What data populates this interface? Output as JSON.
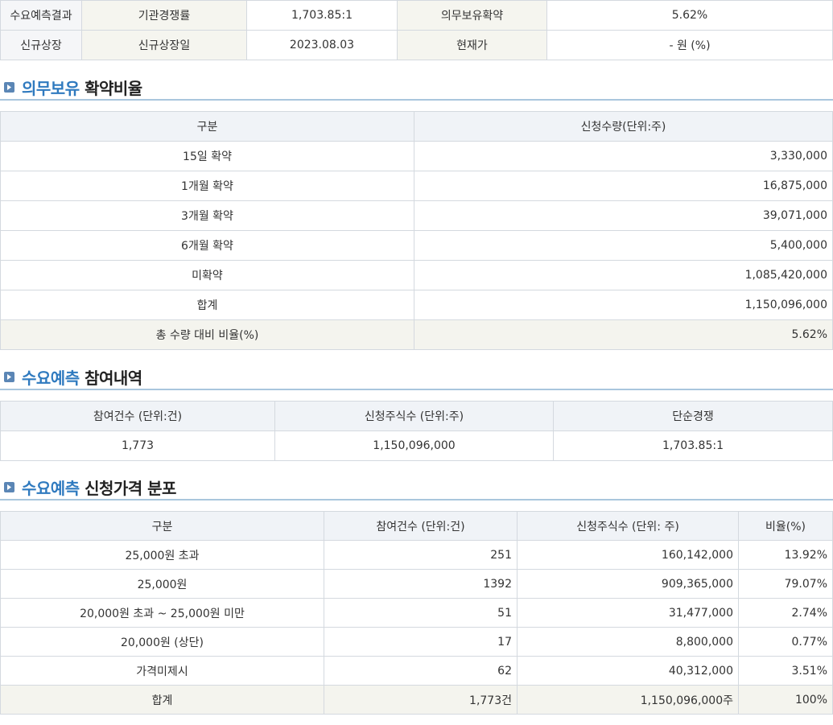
{
  "info": {
    "row1": [
      "수요예측결과",
      "기관경쟁률",
      "1,703.85:1",
      "의무보유확약",
      "5.62%"
    ],
    "row2": [
      "신규상장",
      "신규상장일",
      "2023.08.03",
      "현재가",
      "- 원 (%)"
    ]
  },
  "lockup": {
    "title_accent": "의무보유",
    "title_rest": "확약비율",
    "headers": [
      "구분",
      "신청수량(단위:주)"
    ],
    "rows": [
      [
        "15일 확약",
        "3,330,000"
      ],
      [
        "1개월 확약",
        "16,875,000"
      ],
      [
        "3개월 확약",
        "39,071,000"
      ],
      [
        "6개월 확약",
        "5,400,000"
      ],
      [
        "미확약",
        "1,085,420,000"
      ],
      [
        "합계",
        "1,150,096,000"
      ],
      [
        "총 수량 대비 비율(%)",
        "5.62%"
      ]
    ]
  },
  "participation": {
    "title_accent": "수요예측",
    "title_rest": "참여내역",
    "headers": [
      "참여건수 (단위:건)",
      "신청주식수 (단위:주)",
      "단순경쟁"
    ],
    "row": [
      "1,773",
      "1,150,096,000",
      "1,703.85:1"
    ]
  },
  "distribution": {
    "title_accent": "수요예측",
    "title_rest": "신청가격 분포",
    "headers": [
      "구분",
      "참여건수 (단위:건)",
      "신청주식수 (단위: 주)",
      "비율(%)"
    ],
    "rows": [
      [
        "25,000원 초과",
        "251",
        "160,142,000",
        "13.92%"
      ],
      [
        "25,000원",
        "1392",
        "909,365,000",
        "79.07%"
      ],
      [
        "20,000원 초과 ~ 25,000원 미만",
        "51",
        "31,477,000",
        "2.74%"
      ],
      [
        "20,000원 (상단)",
        "17",
        "8,800,000",
        "0.77%"
      ],
      [
        "가격미제시",
        "62",
        "40,312,000",
        "3.51%"
      ],
      [
        "합계",
        "1,773건",
        "1,150,096,000주",
        "100%"
      ]
    ]
  }
}
